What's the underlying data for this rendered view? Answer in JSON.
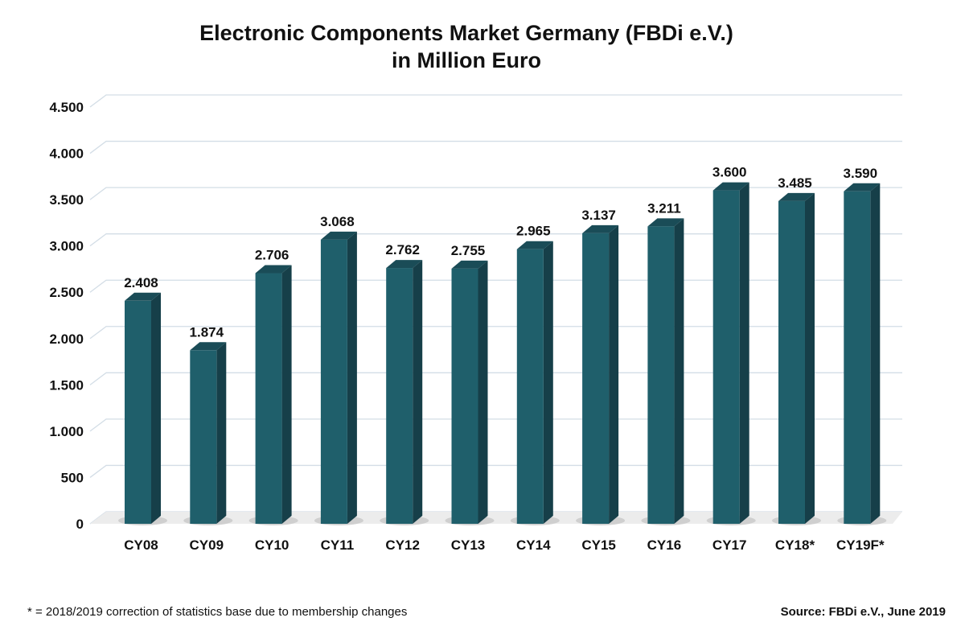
{
  "chart_data": {
    "type": "bar",
    "title": "Electronic Components Market Germany (FBDi e.V.)",
    "subtitle": "in Million Euro",
    "categories": [
      "CY08",
      "CY09",
      "CY10",
      "CY11",
      "CY12",
      "CY13",
      "CY14",
      "CY15",
      "CY16",
      "CY17",
      "CY18*",
      "CY19F*"
    ],
    "values": [
      2408,
      1874,
      2706,
      3068,
      2762,
      2755,
      2965,
      3137,
      3211,
      3600,
      3485,
      3590
    ],
    "data_labels": [
      "2.408",
      "1.874",
      "2.706",
      "3.068",
      "2.762",
      "2.755",
      "2.965",
      "3.137",
      "3.211",
      "3.600",
      "3.485",
      "3.590"
    ],
    "yticks": [
      0,
      500,
      1000,
      1500,
      2000,
      2500,
      3000,
      3500,
      4000,
      4500
    ],
    "ytick_labels": [
      "0",
      "500",
      "1.000",
      "1.500",
      "2.000",
      "2.500",
      "3.000",
      "3.500",
      "4.000",
      "4.500"
    ],
    "ylim": [
      0,
      4500
    ],
    "grid": true,
    "style": "3d-column",
    "colors": {
      "front": "#1f5f6b",
      "side": "#163f49",
      "top": "#1a4c57",
      "grid": "#d3dde6"
    }
  },
  "footnote": "* = 2018/2019 correction of statistics base due to membership changes",
  "source": "Source: FBDi e.V., June 2019"
}
